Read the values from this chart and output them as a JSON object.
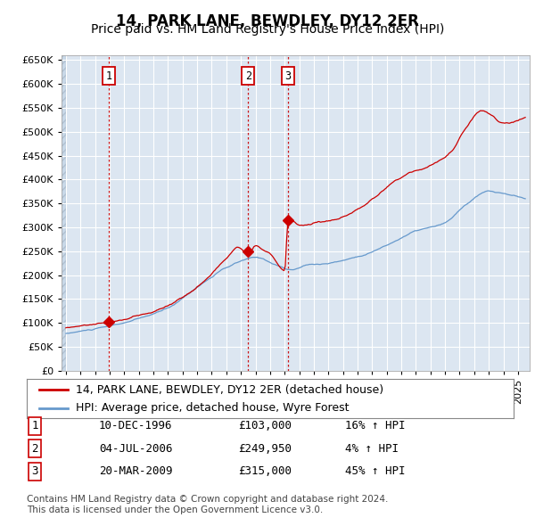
{
  "title": "14, PARK LANE, BEWDLEY, DY12 2ER",
  "subtitle": "Price paid vs. HM Land Registry's House Price Index (HPI)",
  "ylim": [
    0,
    660000
  ],
  "yticks": [
    0,
    50000,
    100000,
    150000,
    200000,
    250000,
    300000,
    350000,
    400000,
    450000,
    500000,
    550000,
    600000,
    650000
  ],
  "xlim_start": 1993.7,
  "xlim_end": 2025.8,
  "background_color": "#dce6f1",
  "grid_color": "#ffffff",
  "sale_color": "#cc0000",
  "hpi_color": "#6699cc",
  "vline_color": "#cc0000",
  "sale_dates": [
    1996.94,
    2006.5,
    2009.22
  ],
  "sale_prices": [
    103000,
    249950,
    315000
  ],
  "sale_labels": [
    "1",
    "2",
    "3"
  ],
  "legend_sale_label": "14, PARK LANE, BEWDLEY, DY12 2ER (detached house)",
  "legend_hpi_label": "HPI: Average price, detached house, Wyre Forest",
  "table_rows": [
    {
      "num": "1",
      "date": "10-DEC-1996",
      "price": "£103,000",
      "change": "16% ↑ HPI"
    },
    {
      "num": "2",
      "date": "04-JUL-2006",
      "price": "£249,950",
      "change": "4% ↑ HPI"
    },
    {
      "num": "3",
      "date": "20-MAR-2009",
      "price": "£315,000",
      "change": "45% ↑ HPI"
    }
  ],
  "footer": "Contains HM Land Registry data © Crown copyright and database right 2024.\nThis data is licensed under the Open Government Licence v3.0.",
  "title_fontsize": 12,
  "subtitle_fontsize": 10,
  "tick_fontsize": 8,
  "legend_fontsize": 9,
  "table_fontsize": 9,
  "footer_fontsize": 7.5
}
